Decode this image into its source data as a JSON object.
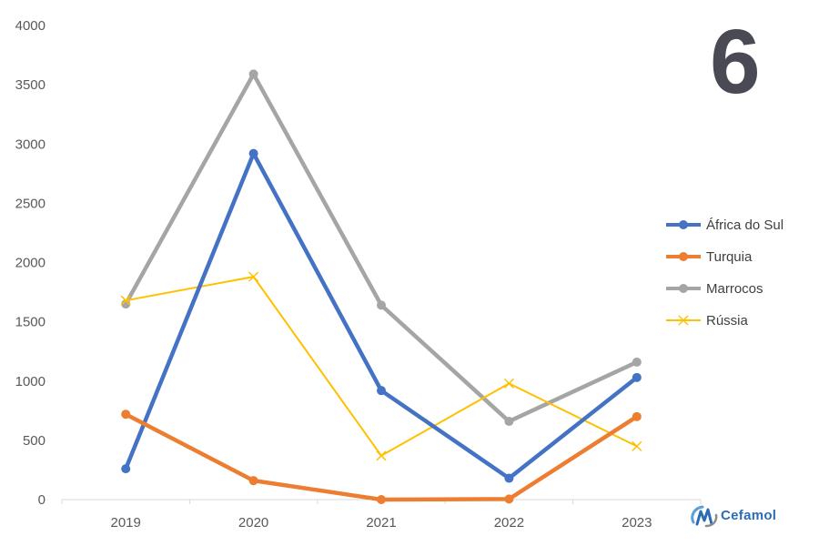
{
  "badge": {
    "number": "6"
  },
  "logo": {
    "text": "Cefamol"
  },
  "colors": {
    "axis": "#d9d9d9",
    "tick_text": "#595959"
  },
  "chart_data": {
    "type": "line",
    "title": "",
    "xlabel": "",
    "ylabel": "",
    "categories": [
      "2019",
      "2020",
      "2021",
      "2022",
      "2023"
    ],
    "ylim": [
      0,
      4000
    ],
    "yticks": [
      0,
      500,
      1000,
      1500,
      2000,
      2500,
      3000,
      3500,
      4000
    ],
    "grid": false,
    "legend_position": "right",
    "series": [
      {
        "name": "África do Sul",
        "values": [
          260,
          2920,
          920,
          180,
          1030
        ],
        "color": "#4472C4",
        "marker": "circle",
        "width": "thick"
      },
      {
        "name": "Turquia",
        "values": [
          720,
          160,
          0,
          5,
          700
        ],
        "color": "#ED7D31",
        "marker": "circle",
        "width": "thick"
      },
      {
        "name": "Marrocos",
        "values": [
          1650,
          3590,
          1640,
          660,
          1160
        ],
        "color": "#A5A5A5",
        "marker": "circle",
        "width": "thick"
      },
      {
        "name": "Rússia",
        "values": [
          1680,
          1880,
          370,
          980,
          450
        ],
        "color": "#FFC000",
        "marker": "x",
        "width": "thin"
      }
    ]
  }
}
